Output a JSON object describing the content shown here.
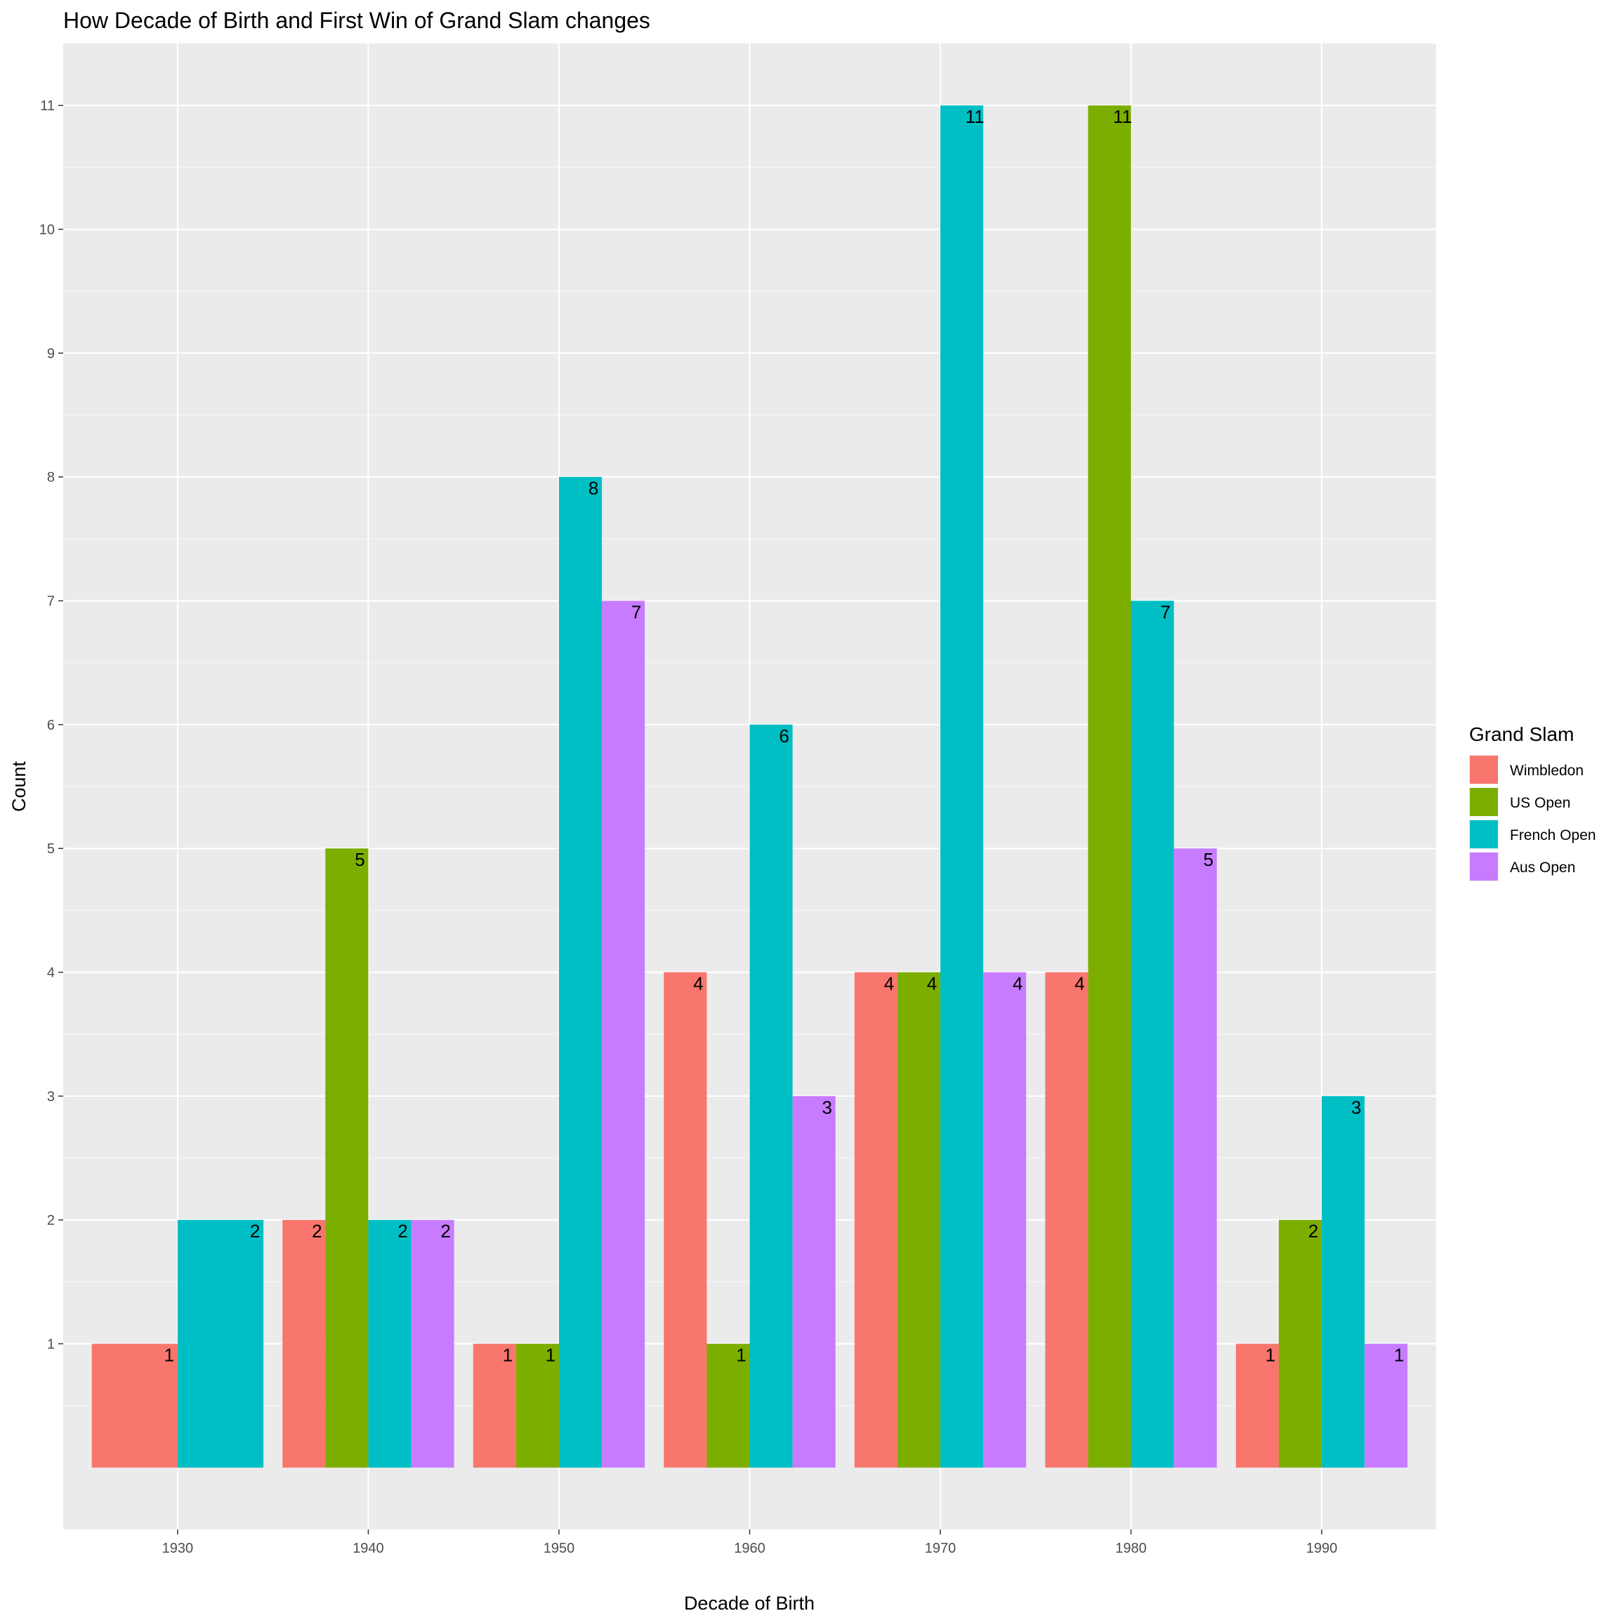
{
  "chart_data": {
    "type": "bar",
    "title": "How Decade of Birth and First Win of Grand Slam changes",
    "xlabel": "Decade of Birth",
    "ylabel": "Count",
    "categories": [
      "1930",
      "1940",
      "1950",
      "1960",
      "1970",
      "1980",
      "1990"
    ],
    "ylim": [
      -0.5,
      11.5
    ],
    "y_ticks": [
      1,
      2,
      3,
      4,
      5,
      6,
      7,
      8,
      9,
      10,
      11
    ],
    "grid": true,
    "legend": {
      "title": "Grand Slam",
      "position": "right"
    },
    "series": [
      {
        "name": "Wimbledon",
        "color": "#F8766D",
        "values": [
          1,
          2,
          1,
          4,
          4,
          4,
          1
        ]
      },
      {
        "name": "US Open",
        "color": "#7CAE00",
        "values": [
          null,
          5,
          1,
          1,
          4,
          11,
          2
        ]
      },
      {
        "name": "French Open",
        "color": "#00BFC4",
        "values": [
          2,
          2,
          8,
          6,
          11,
          7,
          3
        ]
      },
      {
        "name": "Aus Open",
        "color": "#C77CFF",
        "values": [
          null,
          2,
          7,
          3,
          4,
          5,
          1
        ]
      }
    ]
  }
}
